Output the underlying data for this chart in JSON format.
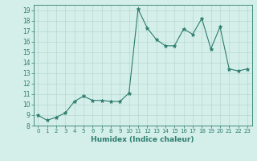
{
  "x": [
    0,
    1,
    2,
    3,
    4,
    5,
    6,
    7,
    8,
    9,
    10,
    11,
    12,
    13,
    14,
    15,
    16,
    17,
    18,
    19,
    20,
    21,
    22,
    23
  ],
  "y": [
    9.0,
    8.5,
    8.8,
    9.2,
    10.3,
    10.8,
    10.4,
    10.4,
    10.3,
    10.3,
    11.1,
    19.1,
    17.3,
    16.2,
    15.6,
    15.6,
    17.2,
    16.7,
    18.2,
    15.3,
    17.4,
    13.4,
    13.2,
    13.4
  ],
  "xlabel": "Humidex (Indice chaleur)",
  "xlim": [
    -0.5,
    23.5
  ],
  "ylim": [
    8,
    19.5
  ],
  "yticks": [
    8,
    9,
    10,
    11,
    12,
    13,
    14,
    15,
    16,
    17,
    18,
    19
  ],
  "xticks": [
    0,
    1,
    2,
    3,
    4,
    5,
    6,
    7,
    8,
    9,
    10,
    11,
    12,
    13,
    14,
    15,
    16,
    17,
    18,
    19,
    20,
    21,
    22,
    23
  ],
  "line_color": "#2d7d6e",
  "bg_color": "#d4eeea",
  "grid_color": "#b8d8d0",
  "spine_color": "#2d7d6e",
  "tick_color": "#2d7d6e",
  "xlabel_color": "#2d7d6e"
}
